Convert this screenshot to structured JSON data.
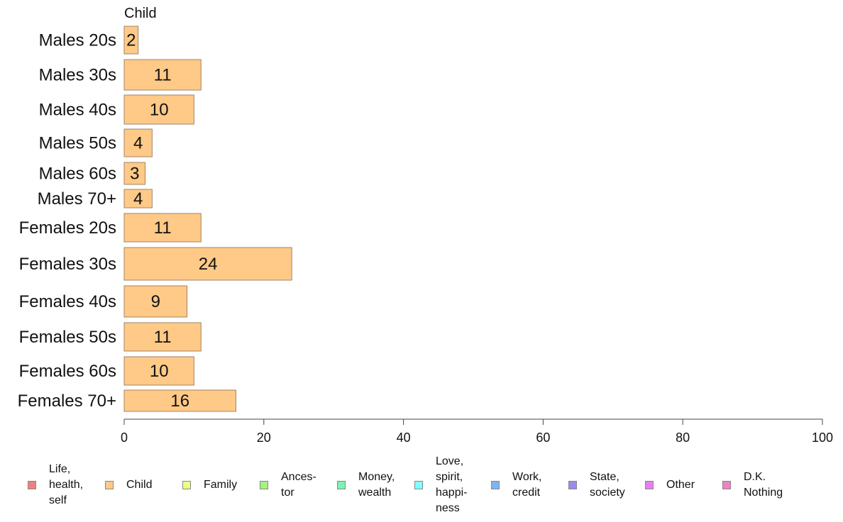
{
  "chart_data": {
    "type": "bar",
    "orientation": "horizontal",
    "title": "Child",
    "categories": [
      "Males 20s",
      "Males 30s",
      "Males 40s",
      "Males 50s",
      "Males 60s",
      "Males 70+",
      "Females 20s",
      "Females 30s",
      "Females 40s",
      "Females 50s",
      "Females 60s",
      "Females 70+"
    ],
    "values": [
      2,
      11,
      10,
      4,
      3,
      4,
      11,
      24,
      9,
      11,
      10,
      16
    ],
    "value_labels": [
      "2",
      "11",
      "10",
      "4",
      "3",
      "4",
      "11",
      "24",
      "9",
      "11",
      "10",
      "16"
    ],
    "xlim": [
      0,
      100
    ],
    "x_ticks": [
      "0",
      "20",
      "40",
      "60",
      "80",
      "100"
    ],
    "bar_color": "#FFC987",
    "bar_edge_color": "#A08466",
    "grid": false,
    "legend_position": "bottom",
    "legend": [
      {
        "label": "Life,\nhealth,\nself",
        "color": "#F08080"
      },
      {
        "label": "Child",
        "color": "#FFC987"
      },
      {
        "label": "Family",
        "color": "#EEFF80"
      },
      {
        "label": "Ances-\ntor",
        "color": "#A6F080"
      },
      {
        "label": "Money,\nwealth",
        "color": "#80F0B4"
      },
      {
        "label": "Love,\nspirit,\nhappi-\nness",
        "color": "#80FFFF"
      },
      {
        "label": "Work,\ncredit",
        "color": "#80B4F0"
      },
      {
        "label": "State,\nsociety",
        "color": "#9A8AF0"
      },
      {
        "label": "Other",
        "color": "#E680F0"
      },
      {
        "label": "D.K.\nNothing",
        "color": "#F080C4"
      }
    ]
  }
}
